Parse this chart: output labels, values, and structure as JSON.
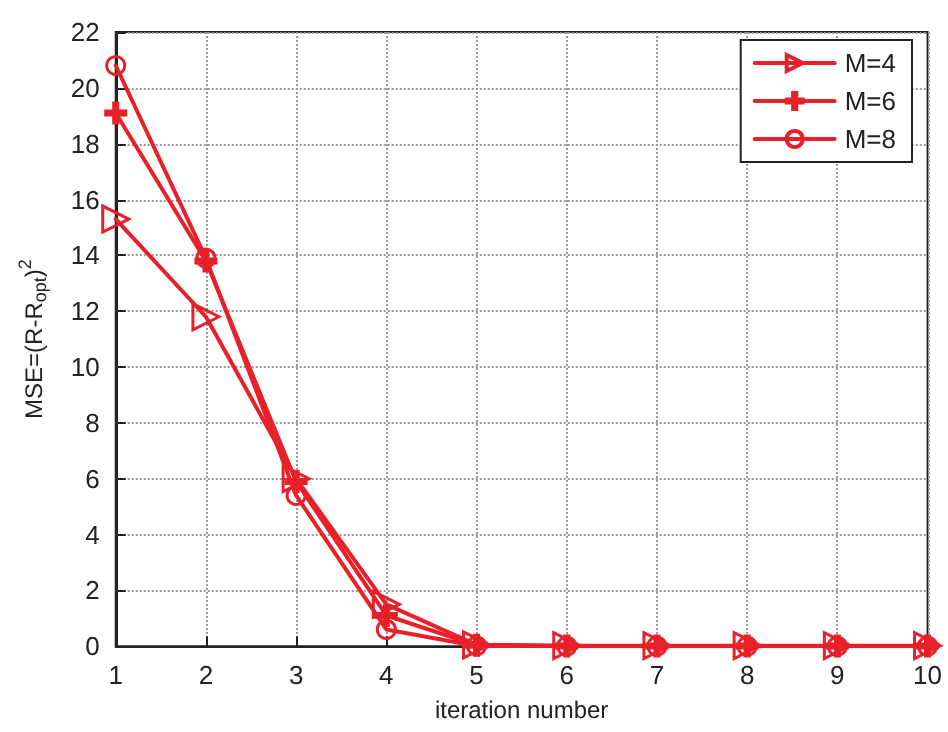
{
  "chart_data": {
    "type": "line",
    "xlabel": "iteration number",
    "ylabel": "MSE=(R-R$_{opt}$)$^{2}$",
    "x": [
      1,
      2,
      3,
      4,
      5,
      6,
      7,
      8,
      9,
      10
    ],
    "series": [
      {
        "name": "M=4",
        "color": "#e8202a",
        "marker": "triangle",
        "values": [
          15.3,
          11.8,
          6.0,
          1.5,
          0.05,
          0.02,
          0.02,
          0.02,
          0.02,
          0.02
        ]
      },
      {
        "name": "M=6",
        "color": "#e8202a",
        "marker": "cross",
        "values": [
          19.1,
          13.8,
          5.9,
          1.1,
          0.03,
          0.01,
          0.01,
          0.01,
          0.01,
          0.01
        ]
      },
      {
        "name": "M=8",
        "color": "#e8202a",
        "marker": "circle",
        "values": [
          20.8,
          13.9,
          5.4,
          0.6,
          0.01,
          0,
          0,
          0,
          0,
          0
        ]
      }
    ],
    "xlim": [
      1,
      10
    ],
    "xticks": [
      1,
      2,
      3,
      4,
      5,
      6,
      7,
      8,
      9,
      10
    ],
    "ylim": [
      0,
      22
    ],
    "yticks": [
      0,
      2,
      4,
      6,
      8,
      10,
      12,
      14,
      16,
      18,
      20,
      22
    ],
    "grid": true,
    "legend": "top right",
    "line_style": "solid"
  }
}
